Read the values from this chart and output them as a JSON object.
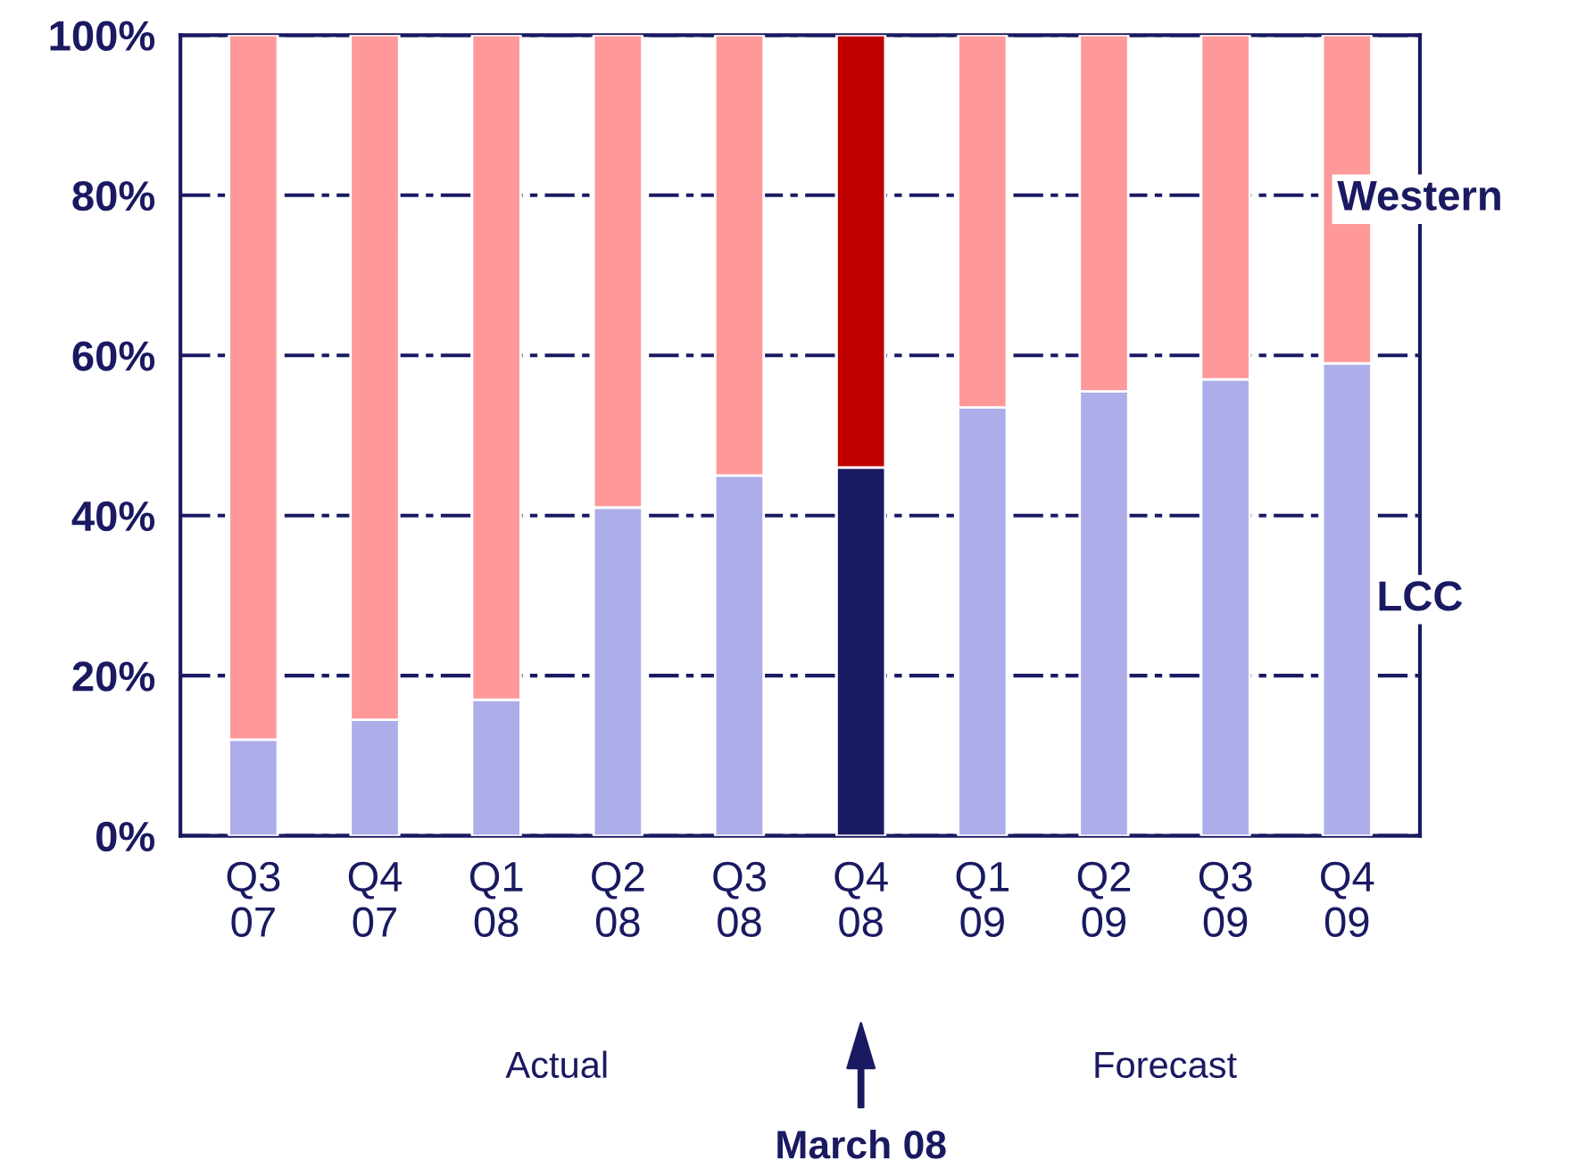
{
  "chart_data": {
    "type": "bar",
    "stacked": true,
    "categories": [
      "Q3\n07",
      "Q4\n07",
      "Q1\n08",
      "Q2\n08",
      "Q3\n08",
      "Q4\n08",
      "Q1\n09",
      "Q2\n09",
      "Q3\n09",
      "Q4\n09"
    ],
    "series": [
      {
        "name": "LCC",
        "colors": [
          "#adadea",
          "#adadea",
          "#adadea",
          "#adadea",
          "#adadea",
          "#1a1a62",
          "#adadea",
          "#adadea",
          "#adadea",
          "#adadea"
        ],
        "values": [
          12,
          14.5,
          17,
          41,
          45,
          46,
          53.5,
          55.5,
          57,
          59
        ]
      },
      {
        "name": "Western",
        "colors": [
          "#ff9999",
          "#ff9999",
          "#ff9999",
          "#ff9999",
          "#ff9999",
          "#c00000",
          "#ff9999",
          "#ff9999",
          "#ff9999",
          "#ff9999"
        ],
        "values": [
          88,
          85.5,
          83,
          59,
          55,
          54,
          46.5,
          44.5,
          43,
          41
        ]
      }
    ],
    "ylim": [
      0,
      100
    ],
    "yticks": [
      {
        "value": 0,
        "label": "0%"
      },
      {
        "value": 20,
        "label": "20%"
      },
      {
        "value": 40,
        "label": "40%"
      },
      {
        "value": 60,
        "label": "60%"
      },
      {
        "value": 80,
        "label": "80%"
      },
      {
        "value": 100,
        "label": "100%"
      }
    ],
    "grid": "y",
    "annotations": [
      "Actual",
      "Forecast",
      "March 08"
    ]
  }
}
